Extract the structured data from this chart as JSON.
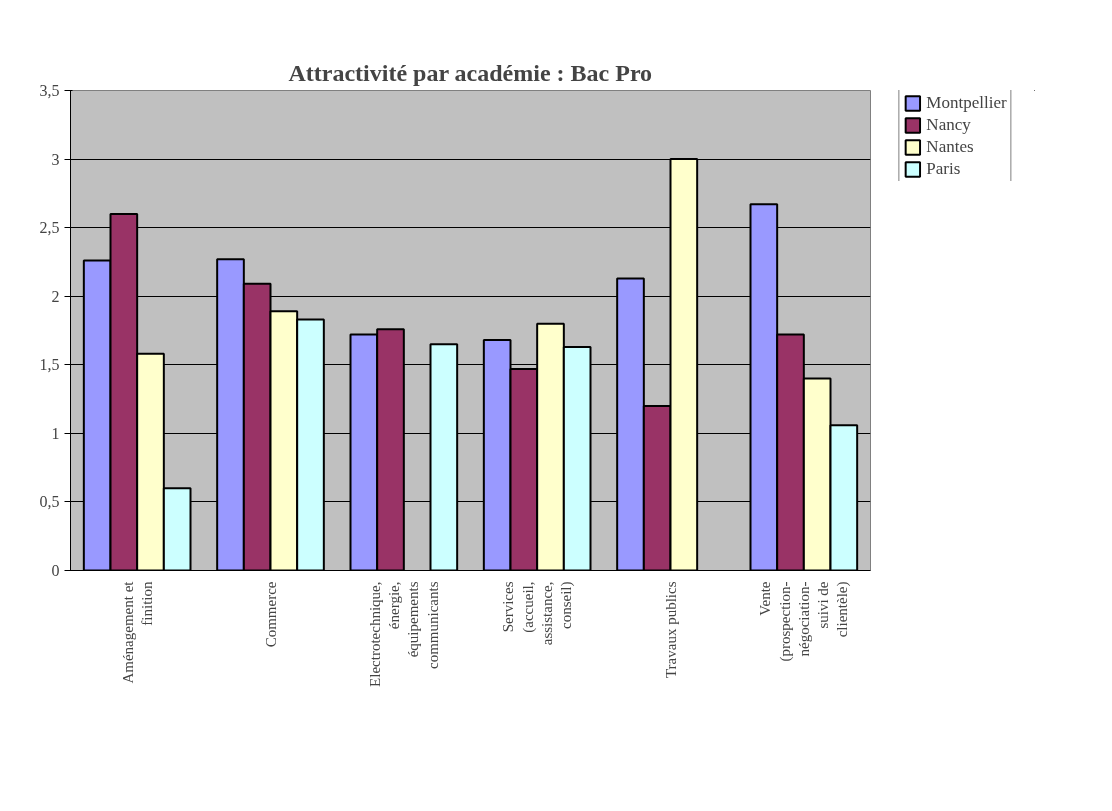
{
  "chart_data": {
    "type": "bar",
    "title": "Attractivité par académie : Bac Pro",
    "categories": [
      "Aménagement et finition",
      "Commerce",
      "Electrotechnique, énergie, équipements communicants",
      "Services (accueil, assistance, conseil)",
      "Travaux publics",
      "Vente (prospection-négociation-suivi de clientèle)"
    ],
    "series": [
      {
        "name": "Montpellier",
        "color": "#9999ff",
        "values": [
          2.26,
          2.27,
          1.72,
          1.68,
          2.13,
          2.67
        ]
      },
      {
        "name": "Nancy",
        "color": "#993366",
        "values": [
          2.6,
          2.09,
          1.76,
          1.47,
          1.2,
          1.72
        ]
      },
      {
        "name": "Nantes",
        "color": "#ffffcc",
        "values": [
          1.58,
          1.89,
          null,
          1.8,
          3.0,
          1.4
        ]
      },
      {
        "name": "Paris",
        "color": "#ccffff",
        "values": [
          0.6,
          1.83,
          1.65,
          1.63,
          null,
          1.06
        ]
      }
    ],
    "ylim": [
      0,
      3.5
    ],
    "yticks": [
      0,
      {
        "value": 0.5,
        "label": "0,5"
      },
      1,
      {
        "value": 1.5,
        "label": "1,5"
      },
      2,
      {
        "value": 2.5,
        "label": "2,5"
      },
      3,
      {
        "value": 3.5,
        "label": "3,5"
      }
    ],
    "grid": "y",
    "legend": "right"
  }
}
